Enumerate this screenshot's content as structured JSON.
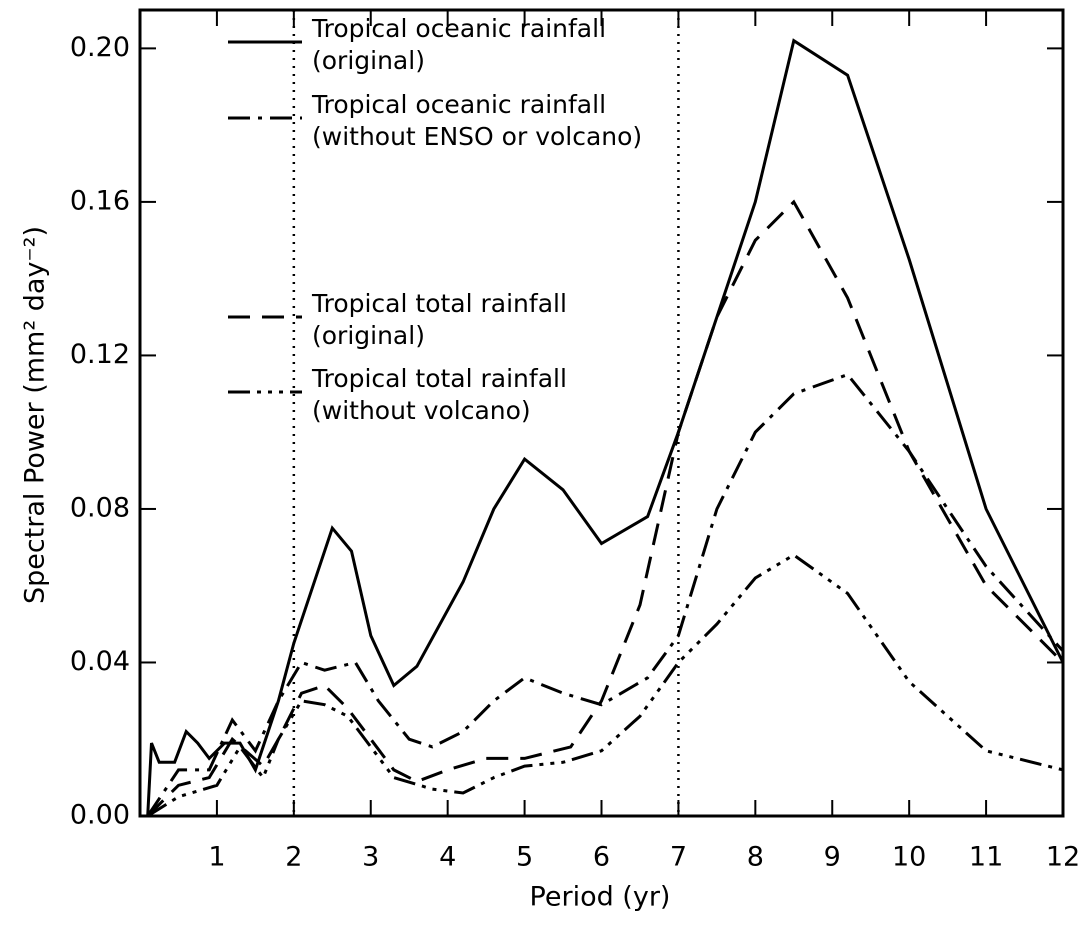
{
  "chart_data": {
    "type": "line",
    "xlabel": "Period (yr)",
    "ylabel": "Spectral Power (mm² day⁻²)",
    "xlim": [
      0,
      12
    ],
    "ylim": [
      0,
      0.21
    ],
    "xticks": [
      1,
      2,
      3,
      4,
      5,
      6,
      7,
      8,
      9,
      10,
      11,
      12
    ],
    "yticks": [
      {
        "value": 0,
        "label": "0.00"
      },
      {
        "value": 0.04,
        "label": "0.04"
      },
      {
        "value": 0.08,
        "label": "0.08"
      },
      {
        "value": 0.12,
        "label": "0.12"
      },
      {
        "value": 0.16,
        "label": "0.16"
      },
      {
        "value": 0.2,
        "label": "0.20"
      }
    ],
    "vlines": [
      2,
      7
    ],
    "series": [
      {
        "name": "Tropical oceanic rainfall\n(original)",
        "color": "#000000",
        "dash": "solid",
        "x": [
          0.1,
          0.15,
          0.25,
          0.45,
          0.6,
          0.75,
          0.9,
          1.1,
          1.3,
          1.5,
          1.8,
          2.0,
          2.3,
          2.5,
          2.75,
          3.0,
          3.3,
          3.6,
          4.2,
          4.6,
          5.0,
          5.5,
          6.0,
          6.6,
          7.0,
          7.5,
          8.0,
          8.5,
          9.2,
          10.0,
          11.0,
          12.0
        ],
        "values": [
          0,
          0.019,
          0.014,
          0.014,
          0.022,
          0.019,
          0.015,
          0.019,
          0.019,
          0.012,
          0.03,
          0.045,
          0.063,
          0.075,
          0.069,
          0.047,
          0.034,
          0.039,
          0.061,
          0.08,
          0.093,
          0.085,
          0.071,
          0.078,
          0.1,
          0.13,
          0.16,
          0.202,
          0.193,
          0.145,
          0.08,
          0.04
        ]
      },
      {
        "name": "Tropical oceanic rainfall\n(without ENSO or volcano)",
        "color": "#000000",
        "dash": "dashdot",
        "x": [
          0.1,
          0.5,
          0.9,
          1.2,
          1.5,
          1.8,
          2.1,
          2.4,
          2.8,
          3.1,
          3.5,
          3.8,
          4.2,
          4.6,
          5.0,
          5.5,
          6.0,
          6.6,
          7.0,
          7.5,
          8.0,
          8.5,
          9.2,
          10.0,
          11.0,
          12.0
        ],
        "values": [
          0,
          0.012,
          0.012,
          0.025,
          0.017,
          0.03,
          0.04,
          0.038,
          0.04,
          0.03,
          0.02,
          0.018,
          0.022,
          0.03,
          0.036,
          0.032,
          0.029,
          0.036,
          0.047,
          0.08,
          0.1,
          0.11,
          0.115,
          0.095,
          0.065,
          0.043
        ]
      },
      {
        "name": "Tropical total rainfall\n(original)",
        "color": "#000000",
        "dash": "dash",
        "x": [
          0.1,
          0.5,
          0.9,
          1.2,
          1.6,
          1.8,
          2.1,
          2.4,
          2.7,
          3.0,
          3.3,
          3.6,
          4.0,
          4.5,
          5.0,
          5.6,
          6.0,
          6.5,
          7.0,
          7.5,
          8.0,
          8.5,
          9.2,
          10.0,
          11.0,
          12.0
        ],
        "values": [
          0,
          0.008,
          0.01,
          0.02,
          0.013,
          0.02,
          0.032,
          0.034,
          0.028,
          0.02,
          0.012,
          0.009,
          0.012,
          0.015,
          0.015,
          0.018,
          0.03,
          0.055,
          0.1,
          0.13,
          0.15,
          0.16,
          0.135,
          0.095,
          0.06,
          0.04
        ]
      },
      {
        "name": "Tropical total rainfall\n(without volcano)",
        "color": "#000000",
        "dash": "dashdotdotdot",
        "x": [
          0.1,
          0.5,
          1.0,
          1.3,
          1.6,
          1.8,
          2.1,
          2.4,
          2.7,
          3.0,
          3.3,
          3.8,
          4.2,
          4.6,
          5.0,
          5.5,
          6.0,
          6.5,
          7.0,
          7.5,
          8.0,
          8.5,
          9.2,
          10.0,
          11.0,
          12.0
        ],
        "values": [
          0,
          0.005,
          0.008,
          0.018,
          0.01,
          0.02,
          0.03,
          0.029,
          0.026,
          0.018,
          0.01,
          0.007,
          0.006,
          0.01,
          0.013,
          0.014,
          0.017,
          0.026,
          0.04,
          0.05,
          0.062,
          0.068,
          0.058,
          0.035,
          0.017,
          0.012
        ]
      }
    ]
  }
}
